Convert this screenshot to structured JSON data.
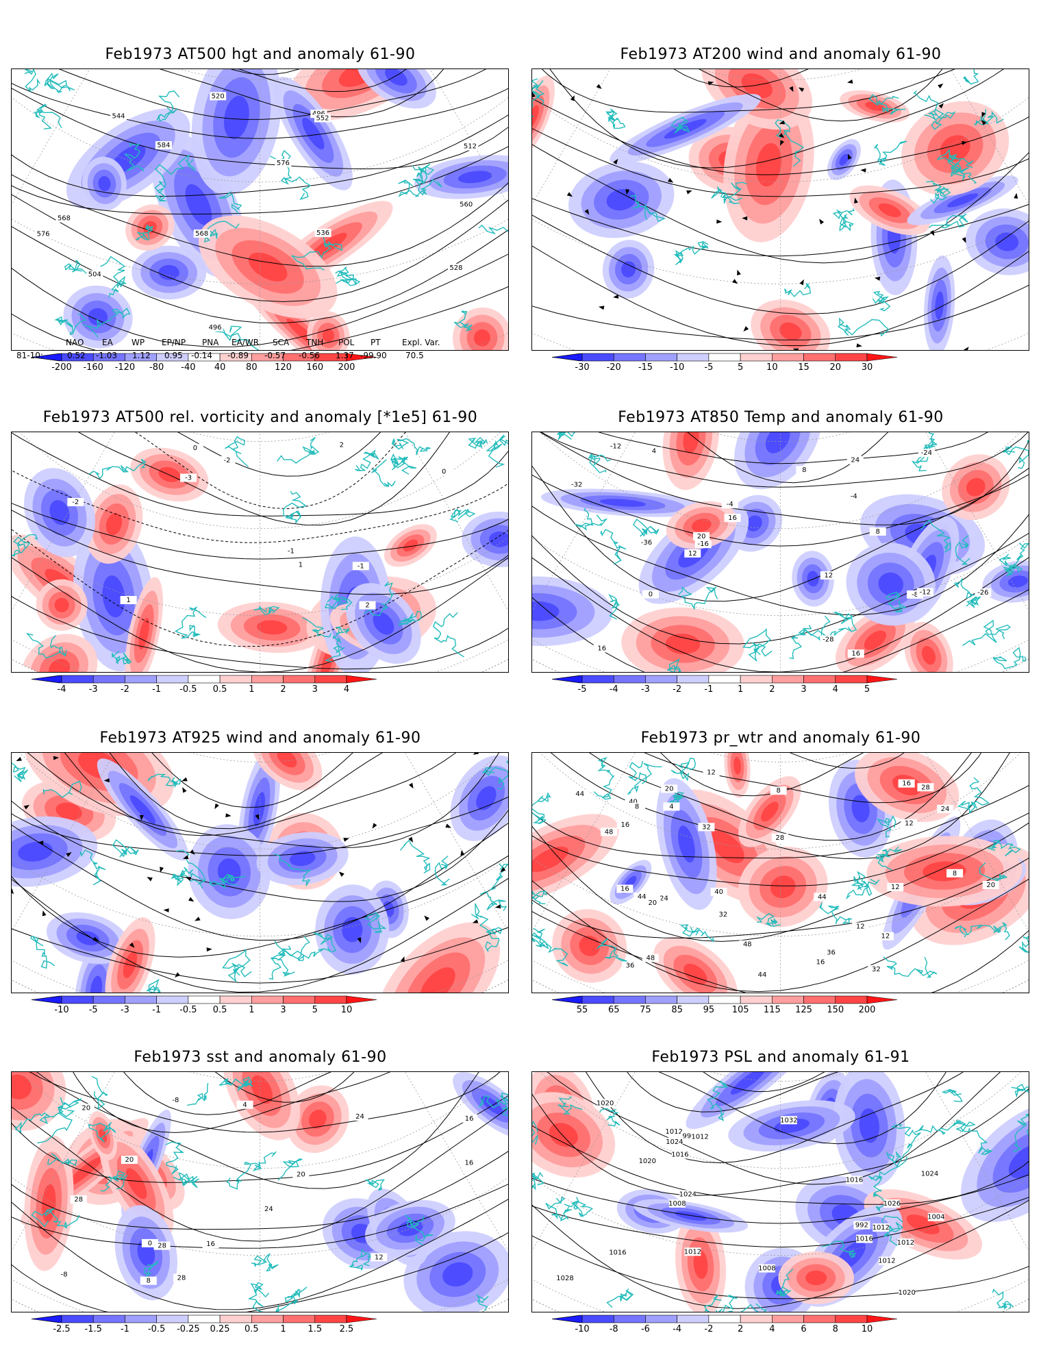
{
  "panels": [
    {
      "title": "Feb1973 AT500 hgt and anomaly 61-90",
      "map": "hgt500",
      "colorbar": [
        "-200",
        "-160",
        "-120",
        "-80",
        "-40",
        "40",
        "80",
        "120",
        "160",
        "200"
      ],
      "contour_labels": [
        "496",
        "496",
        "504",
        "512",
        "520",
        "528",
        "536",
        "544",
        "552",
        "560",
        "568",
        "576",
        "584",
        "568",
        "576"
      ]
    },
    {
      "title": "Feb1973 AT200 wind and anomaly 61-90",
      "map": "wind200",
      "colorbar": [
        "-30",
        "-20",
        "-15",
        "-10",
        "-5",
        "5",
        "10",
        "15",
        "20",
        "30"
      ],
      "contour_labels": []
    },
    {
      "title": "Feb1973 AT500 rel. vorticity and anomaly [*1e5] 61-90",
      "map": "vort500",
      "colorbar": [
        "-4",
        "-3",
        "-2",
        "-1",
        "-0.5",
        "0.5",
        "1",
        "2",
        "3",
        "4"
      ],
      "contour_labels": [
        "-2",
        "-1",
        "0",
        "1",
        "2",
        "-3",
        "-2",
        "2",
        "1",
        "0",
        "-1"
      ]
    },
    {
      "title": "Feb1973 AT850 Temp and anomaly 61-90",
      "map": "temp850",
      "colorbar": [
        "-5",
        "-4",
        "-3",
        "-2",
        "-1",
        "1",
        "2",
        "3",
        "4",
        "5"
      ],
      "contour_labels": [
        "-28",
        "-26",
        "-36",
        "-32",
        "-24",
        "-16",
        "-12",
        "-8",
        "-4",
        "0",
        "4",
        "8",
        "12",
        "16",
        "20",
        "24",
        "16",
        "12",
        "8",
        "-4",
        "-12",
        "16"
      ]
    },
    {
      "title": "Feb1973 AT925 wind and anomaly 61-90",
      "map": "wind925",
      "colorbar": [
        "-10",
        "-5",
        "-3",
        "-1",
        "-0.5",
        "0.5",
        "1",
        "3",
        "5",
        "10"
      ],
      "contour_labels": []
    },
    {
      "title": "Feb1973 pr_wtr and anomaly 61-90",
      "map": "prwtr",
      "colorbar": [
        "55",
        "65",
        "75",
        "85",
        "95",
        "105",
        "115",
        "125",
        "150",
        "200"
      ],
      "contour_labels": [
        "28",
        "24",
        "32",
        "48",
        "44",
        "32",
        "36",
        "44",
        "48",
        "20",
        "16",
        "12",
        "8",
        "12",
        "16",
        "20",
        "24",
        "28",
        "32",
        "36",
        "40",
        "44",
        "48",
        "8",
        "4",
        "12",
        "16",
        "12",
        "40",
        "44",
        "20",
        "16",
        "12",
        "8"
      ]
    },
    {
      "title": "Feb1973 sst and anomaly 61-90",
      "map": "sst",
      "colorbar": [
        "-2.5",
        "-1.5",
        "-1",
        "-0.5",
        "-0.25",
        "0.25",
        "0.5",
        "1",
        "1.5",
        "2.5"
      ],
      "contour_labels": [
        "28",
        "20",
        "16",
        "12",
        "8",
        "4",
        "0",
        "24",
        "28",
        "-8",
        "16",
        "20",
        "24",
        "28",
        "-8",
        "16",
        "20"
      ]
    },
    {
      "title": "Feb1973 PSL and anomaly 61-91",
      "map": "psl",
      "colorbar": [
        "-10",
        "-8",
        "-6",
        "-4",
        "-2",
        "2",
        "4",
        "6",
        "8",
        "10"
      ],
      "contour_labels": [
        "1024",
        "1012",
        "1020",
        "1016",
        "1024",
        "1028",
        "1032",
        "1012",
        "1016",
        "1020",
        "1012",
        "1008",
        "1008",
        "1004",
        "992",
        "996",
        "1012",
        "1016",
        "1020",
        "1024",
        "1026",
        "1012",
        "1012",
        "1016"
      ]
    }
  ],
  "teleconnection": {
    "headers": [
      "NAO",
      "EA",
      "WP",
      "EP/NP",
      "PNA",
      "EA/WR",
      "SCA",
      "TNH",
      "POL",
      "PT",
      "Expl. Var."
    ],
    "row_label": "81-10:",
    "values": [
      "0.52",
      "-1.03",
      "1.12",
      "0.95",
      "-0.14",
      "-0.89",
      "-0.57",
      "-0.56",
      "1.37",
      "-99.90",
      "70.5"
    ]
  },
  "colors": {
    "coast": "#22bbbb",
    "blues": [
      "#1b1bff",
      "#4b4bff",
      "#7575ff",
      "#a0a0ff",
      "#cfcfff"
    ],
    "reds": [
      "#ffd0d0",
      "#ff9f9f",
      "#ff7070",
      "#ff4545",
      "#ff1515"
    ]
  }
}
